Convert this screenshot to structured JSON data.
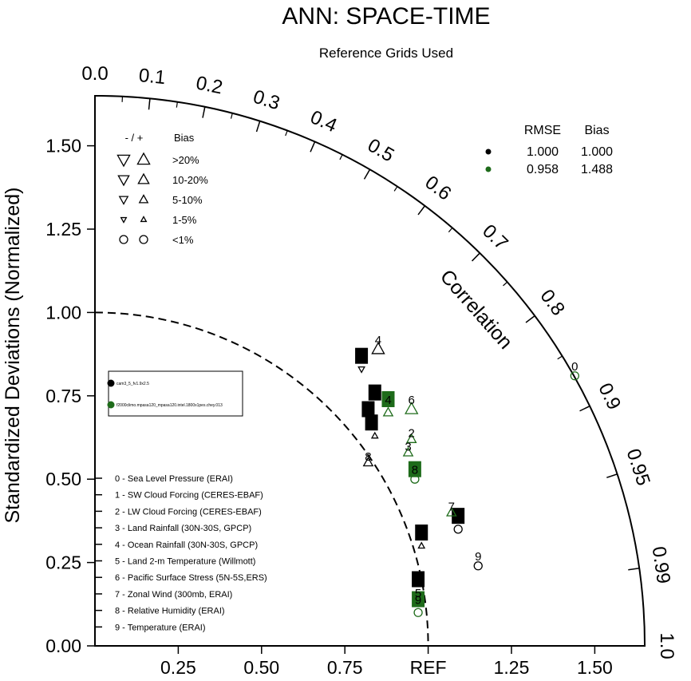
{
  "chart_data": {
    "type": "scatter",
    "subtype": "taylor-diagram",
    "title": "ANN: SPACE-TIME",
    "subtitle": "Reference Grids Used",
    "ylabel": "Standardized Deviations (Normalized)",
    "correlation_label": "Correlation",
    "ylim": [
      0,
      1.65
    ],
    "xlim": [
      0,
      1.65
    ],
    "y_ticks": [
      "0.00",
      "0.25",
      "0.50",
      "0.75",
      "1.00",
      "1.25",
      "1.50"
    ],
    "x_ticks": [
      "0.25",
      "0.50",
      "0.75",
      "REF",
      "1.25",
      "1.50"
    ],
    "corr_ticks": [
      "0.0",
      "0.1",
      "0.2",
      "0.3",
      "0.4",
      "0.5",
      "0.6",
      "0.7",
      "0.8",
      "0.9",
      "0.95",
      "0.99",
      "1.0"
    ],
    "ref_arc_radius": 1.0,
    "series": [
      {
        "name": "cam3_5_fv1.9x2.5",
        "color": "#000000",
        "points": [
          {
            "id": "0",
            "x": 1.09,
            "y": 0.39,
            "marker": "label-box",
            "bias_marker": "circle",
            "bx": 1.09,
            "by": 0.35
          },
          {
            "id": "1",
            "x": 0.83,
            "y": 0.67,
            "marker": "label-box",
            "bias_marker": "triangle-up-small",
            "bx": 0.84,
            "by": 0.63
          },
          {
            "id": "2",
            "x": 0.84,
            "y": 0.76,
            "marker": "label-box",
            "bias_marker": null
          },
          {
            "id": "3",
            "x": 0.82,
            "y": 0.71,
            "marker": "label-box",
            "bias_marker": null
          },
          {
            "id": "4",
            "x": 0.85,
            "y": 0.92,
            "marker": "label",
            "bias_marker": "triangle-up-large",
            "bx": 0.85,
            "by": 0.89
          },
          {
            "id": "5",
            "x": 0.97,
            "y": 0.2,
            "marker": "label-box",
            "bias_marker": "circle",
            "bx": 0.97,
            "by": 0.15
          },
          {
            "id": "6",
            "x": 0.8,
            "y": 0.87,
            "marker": "label-box",
            "bias_marker": "triangle-down-small",
            "bx": 0.8,
            "by": 0.83
          },
          {
            "id": "7",
            "x": 0.98,
            "y": 0.34,
            "marker": "label-box",
            "bias_marker": "triangle-up-small",
            "bx": 0.98,
            "by": 0.3
          },
          {
            "id": "8",
            "x": 0.82,
            "y": 0.57,
            "marker": "label",
            "bias_marker": "triangle-up-medium",
            "bx": 0.82,
            "by": 0.55
          },
          {
            "id": "9",
            "x": 1.15,
            "y": 0.27,
            "marker": "label",
            "bias_marker": "circle",
            "bx": 1.15,
            "by": 0.24
          }
        ]
      },
      {
        "name": "f2000climo.mpasa120_mpasa120.intel.1800x1pes.chey.013",
        "color": "#1e6b1a",
        "points": [
          {
            "id": "0",
            "x": 1.44,
            "y": 0.84,
            "marker": "label",
            "bias_marker": "circle",
            "bx": 1.44,
            "by": 0.81
          },
          {
            "id": "2",
            "x": 0.95,
            "y": 0.64,
            "marker": "label",
            "bias_marker": "triangle-up-medium",
            "bx": 0.95,
            "by": 0.62
          },
          {
            "id": "3",
            "x": 0.94,
            "y": 0.6,
            "marker": "label",
            "bias_marker": "triangle-up-medium",
            "bx": 0.94,
            "by": 0.58
          },
          {
            "id": "4",
            "x": 0.88,
            "y": 0.74,
            "marker": "label-box",
            "bias_marker": "triangle-up-medium",
            "bx": 0.88,
            "by": 0.7
          },
          {
            "id": "6",
            "x": 0.95,
            "y": 0.74,
            "marker": "label",
            "bias_marker": "triangle-up-large",
            "bx": 0.95,
            "by": 0.71
          },
          {
            "id": "7",
            "x": 1.07,
            "y": 0.42,
            "marker": "label",
            "bias_marker": "triangle-up-medium",
            "bx": 1.07,
            "by": 0.4
          },
          {
            "id": "8",
            "x": 0.96,
            "y": 0.53,
            "marker": "label-box",
            "bias_marker": "circle",
            "bx": 0.96,
            "by": 0.5
          },
          {
            "id": "9",
            "x": 0.97,
            "y": 0.14,
            "marker": "label-box",
            "bias_marker": "circle",
            "bx": 0.97,
            "by": 0.1
          },
          {
            "id": "5",
            "x": 0.97,
            "y": 0.16,
            "marker": "label",
            "bias_marker": null
          }
        ]
      }
    ],
    "bias_legend": {
      "header_sign": "- / +",
      "header_bias": "Bias",
      "rows": [
        {
          "label": ">20%",
          "size": "xl"
        },
        {
          "label": "10-20%",
          "size": "l"
        },
        {
          "label": "5-10%",
          "size": "m"
        },
        {
          "label": "1-5%",
          "size": "s"
        },
        {
          "label": "<1%",
          "size": "circle"
        }
      ]
    },
    "stats_table": {
      "headers": [
        "RMSE",
        "Bias"
      ],
      "rows": [
        {
          "color": "#000000",
          "rmse": "1.000",
          "bias": "1.000"
        },
        {
          "color": "#1e6b1a",
          "rmse": "0.958",
          "bias": "1.488"
        }
      ]
    },
    "variables": [
      "0 - Sea Level Pressure (ERAI)",
      "1 - SW Cloud Forcing (CERES-EBAF)",
      "2 - LW Cloud Forcing (CERES-EBAF)",
      "3 - Land Rainfall (30N-30S, GPCP)",
      "4 - Ocean Rainfall (30N-30S, GPCP)",
      "5 - Land 2-m Temperature (Willmott)",
      "6 - Pacific Surface Stress (5N-5S,ERS)",
      "7 - Zonal Wind (300mb, ERAI)",
      "8 - Relative Humidity (ERAI)",
      "9 - Temperature (ERAI)"
    ]
  }
}
